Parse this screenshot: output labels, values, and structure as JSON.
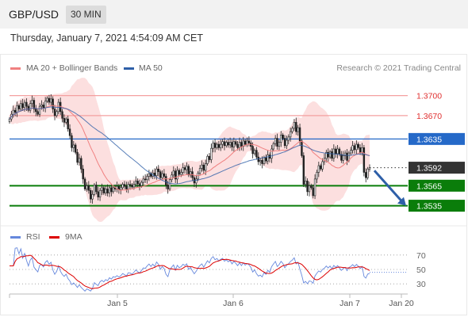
{
  "header": {
    "symbol": "GBP/USD",
    "timeframe": "30 MIN"
  },
  "datetime": "Thursday, January 7, 2021 4:54:09 AM CET",
  "copyright": "Research © 2021 Trading Central",
  "colors": {
    "ma20": "#f08080",
    "ma50": "#2e5fa8",
    "bollinger_fill": "#fcd9d9",
    "up": "#1a9e1a",
    "down": "#c0392b",
    "support": "#0a7d0a",
    "pivot": "#2569c8",
    "rsi": "#6688dd",
    "rsi_ma": "#dd0000",
    "arrow": "#2e5fa8"
  },
  "chart_data": [
    {
      "type": "candlestick",
      "legend": [
        {
          "label": "MA 20 + Bollinger Bands",
          "color": "#f08080"
        },
        {
          "label": "MA 50",
          "color": "#2e5fa8"
        }
      ],
      "ylim": [
        1.3525,
        1.3715
      ],
      "x_ticks": [
        "Jan 5",
        "Jan 6",
        "Jan 7",
        "Jan 20"
      ],
      "levels": [
        {
          "label": "1.3700",
          "value": 1.37,
          "kind": "resistance"
        },
        {
          "label": "1.3670",
          "value": 1.367,
          "kind": "resistance"
        },
        {
          "label": "1.3635",
          "value": 1.3635,
          "kind": "pivot"
        },
        {
          "label": "1.3592",
          "value": 1.3592,
          "kind": "last"
        },
        {
          "label": "1.3565",
          "value": 1.3565,
          "kind": "support"
        },
        {
          "label": "1.3535",
          "value": 1.3535,
          "kind": "support"
        }
      ],
      "forecast": {
        "from": 1.359,
        "to": 1.3535
      },
      "closes": [
        1.3665,
        1.3672,
        1.3678,
        1.3675,
        1.3685,
        1.368,
        1.3688,
        1.3682,
        1.369,
        1.3684,
        1.3678,
        1.3688,
        1.3693,
        1.368,
        1.3676,
        1.3672,
        1.3684,
        1.3686,
        1.3682,
        1.3692,
        1.3696,
        1.369,
        1.3695,
        1.368,
        1.367,
        1.3676,
        1.369,
        1.3676,
        1.3666,
        1.366,
        1.3665,
        1.365,
        1.364,
        1.3622,
        1.3626,
        1.3615,
        1.36,
        1.3606,
        1.359,
        1.3575,
        1.356,
        1.3565,
        1.3558,
        1.3545,
        1.3552,
        1.3566,
        1.3556,
        1.3548,
        1.3558,
        1.3562,
        1.3554,
        1.356,
        1.3554,
        1.3562,
        1.3556,
        1.3562,
        1.356,
        1.3564,
        1.3559,
        1.3562,
        1.3567,
        1.3564,
        1.356,
        1.3567,
        1.3566,
        1.3563,
        1.3567,
        1.3572,
        1.3568,
        1.3565,
        1.357,
        1.3575,
        1.3574,
        1.3579,
        1.3583,
        1.3579,
        1.3584,
        1.358,
        1.359,
        1.3586,
        1.3577,
        1.3583,
        1.3579,
        1.3566,
        1.356,
        1.3574,
        1.3581,
        1.3587,
        1.3575,
        1.3588,
        1.3582,
        1.3585,
        1.3592,
        1.3589,
        1.3594,
        1.3581,
        1.3586,
        1.3577,
        1.3569,
        1.3575,
        1.3584,
        1.3591,
        1.3596,
        1.3588,
        1.3598,
        1.3609,
        1.3604,
        1.3621,
        1.3629,
        1.3622,
        1.3627,
        1.3622,
        1.3627,
        1.3631,
        1.3625,
        1.363,
        1.3626,
        1.363,
        1.3623,
        1.3631,
        1.3627,
        1.3622,
        1.363,
        1.3624,
        1.3632,
        1.3627,
        1.3632,
        1.3629,
        1.3624,
        1.3613,
        1.3618,
        1.3608,
        1.3601,
        1.3603,
        1.3598,
        1.3607,
        1.3602,
        1.3611,
        1.3606,
        1.362,
        1.3628,
        1.3636,
        1.3624,
        1.363,
        1.3641,
        1.3636,
        1.3625,
        1.3633,
        1.3638,
        1.3646,
        1.3651,
        1.366,
        1.3646,
        1.3652,
        1.3632,
        1.361,
        1.3567,
        1.3572,
        1.3556,
        1.3565,
        1.3562,
        1.355,
        1.3575,
        1.3585,
        1.3595,
        1.359,
        1.3601,
        1.3606,
        1.3615,
        1.3608,
        1.3616,
        1.3606,
        1.362,
        1.3613,
        1.362,
        1.3612,
        1.3603,
        1.361,
        1.3614,
        1.3603,
        1.3614,
        1.3618,
        1.3625,
        1.3619,
        1.3627,
        1.3622,
        1.3615,
        1.3622,
        1.3585,
        1.3577,
        1.359,
        1.3592
      ]
    },
    {
      "type": "line",
      "title": "RSI",
      "legend": [
        {
          "label": "RSI",
          "color": "#6688dd"
        },
        {
          "label": "9MA",
          "color": "#dd0000"
        }
      ],
      "ylim": [
        15,
        85
      ],
      "y_ticks": [
        70,
        50,
        30
      ],
      "rsi_last": 46
    }
  ]
}
